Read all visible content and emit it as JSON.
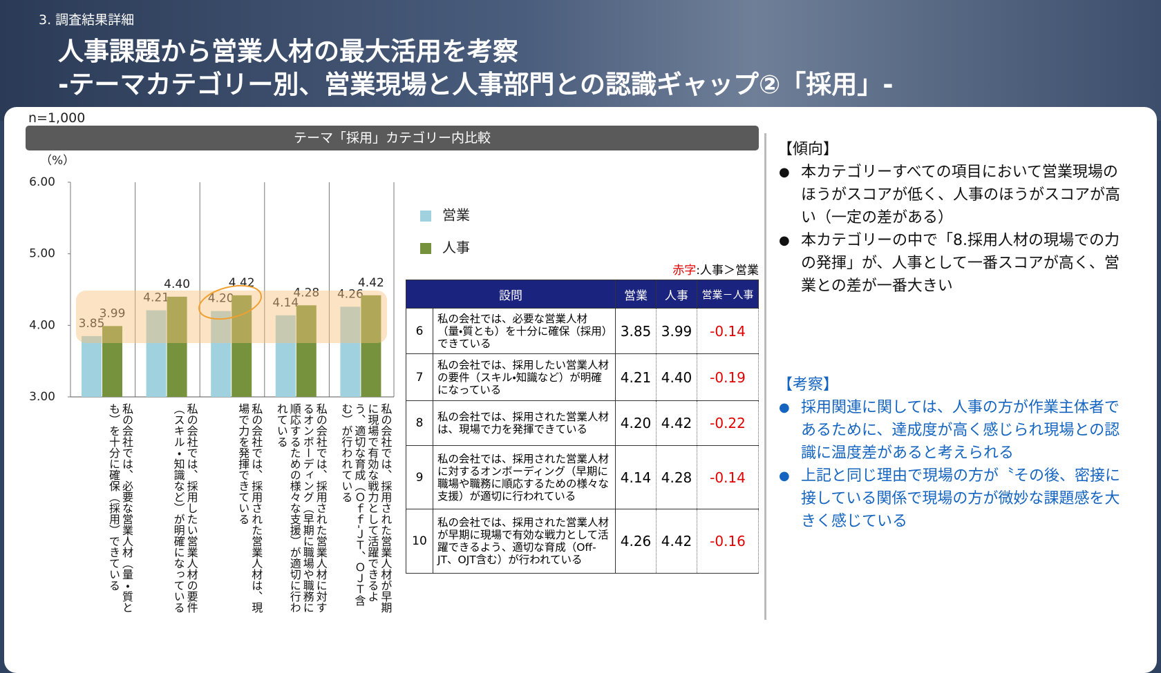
{
  "header": {
    "section": "3. 調査結果詳細",
    "title_lines": [
      "人事課題から営業人材の最大活用を考察",
      "-テーマカテゴリー別、営業現場と人事部門との認識ギャップ②「採用」-"
    ]
  },
  "sample_size": "n=1,000",
  "chart_data": {
    "type": "bar",
    "title": "テーマ「採用」カテゴリー内比較",
    "ylabel": "（%）",
    "categories": [
      "私の会社では、必要な営業人材（量・質とも）を十分に確保（採用）できている",
      "私の会社では、採用したい営業人材の要件（スキル・知識など）が明確になっている",
      "私の会社では、採用された営業人材は、現場で力を発揮できている",
      "私の会社では、採用された営業人材に対するオンボーディング（早期に職場や職務に順応するための様々な支援）が適切に行われている",
      "私の会社では、採用された営業人材が早期に現場で有効な戦力として活躍できるよう、適切な育成（Ｏｆｆ-ＪＴ、ＯＪＴ含む）が行われている"
    ],
    "series": [
      {
        "name": "営業",
        "color": "#9fd1df",
        "values": [
          3.85,
          4.21,
          4.2,
          4.14,
          4.26
        ],
        "value_labels": [
          "3.85",
          "4.21",
          "4.20",
          "4.14",
          "4.26"
        ]
      },
      {
        "name": "人事",
        "color": "#76923c",
        "values": [
          3.99,
          4.4,
          4.42,
          4.28,
          4.42
        ],
        "value_labels": [
          "3.99",
          "4.40",
          "4.42",
          "4.28",
          "4.42"
        ]
      }
    ],
    "ylim": [
      3,
      6
    ],
    "yticks": [
      {
        "value": 3,
        "label": "3.00"
      },
      {
        "value": 4,
        "label": "4.00"
      },
      {
        "value": 5,
        "label": "5.00"
      },
      {
        "value": 6,
        "label": "6.00"
      }
    ]
  },
  "table": {
    "note_red": "赤字",
    "note_rest": ":人事＞営業",
    "columns": [
      "設問",
      "営業",
      "人事",
      "営業－人事"
    ],
    "rows": [
      [
        "6",
        "私の会社では、必要な営業人材（量・質とも）を十分に確保（採用）できている",
        "3.85",
        "3.99",
        "-0.14"
      ],
      [
        "7",
        "私の会社では、採用したい営業人材の要件（スキル・知識など）が明確になっている",
        "4.21",
        "4.40",
        "-0.19"
      ],
      [
        "8",
        "私の会社では、採用された営業人材は、現場で力を発揮できている",
        "4.20",
        "4.42",
        "-0.22"
      ],
      [
        "9",
        "私の会社では、採用された営業人材に対するオンボーディング（早期に職場や職務に順応するための様々な支援）が適切に行われている",
        "4.14",
        "4.28",
        "-0.14"
      ],
      [
        "10",
        "私の会社では、採用された営業人材が早期に現場で有効な戦力として活躍できるよう、適切な育成（Off-JT、OJT含む）が行われている",
        "4.26",
        "4.42",
        "-0.16"
      ]
    ]
  },
  "notes": {
    "trend": {
      "heading": "【傾向】",
      "items": [
        "本カテゴリーすべての項目において営業現場のほうがスコアが低く、人事のほうがスコアが高い（一定の差がある）",
        "本カテゴリーの中で「8.採用人材の現場での力の発揮」が、人事として一番スコアが高く、営業との差が一番大きい"
      ]
    },
    "insight": {
      "heading": "【考察】",
      "items": [
        "採用関連に関しては、人事の方が作業主体者であるために、達成度が高く感じられ現場との認識に温度差があると考えられる",
        "上記と同じ理由で現場の方が〝その後、密接に接している関係で現場の方が微妙な課題感を大きく感じている"
      ]
    }
  }
}
